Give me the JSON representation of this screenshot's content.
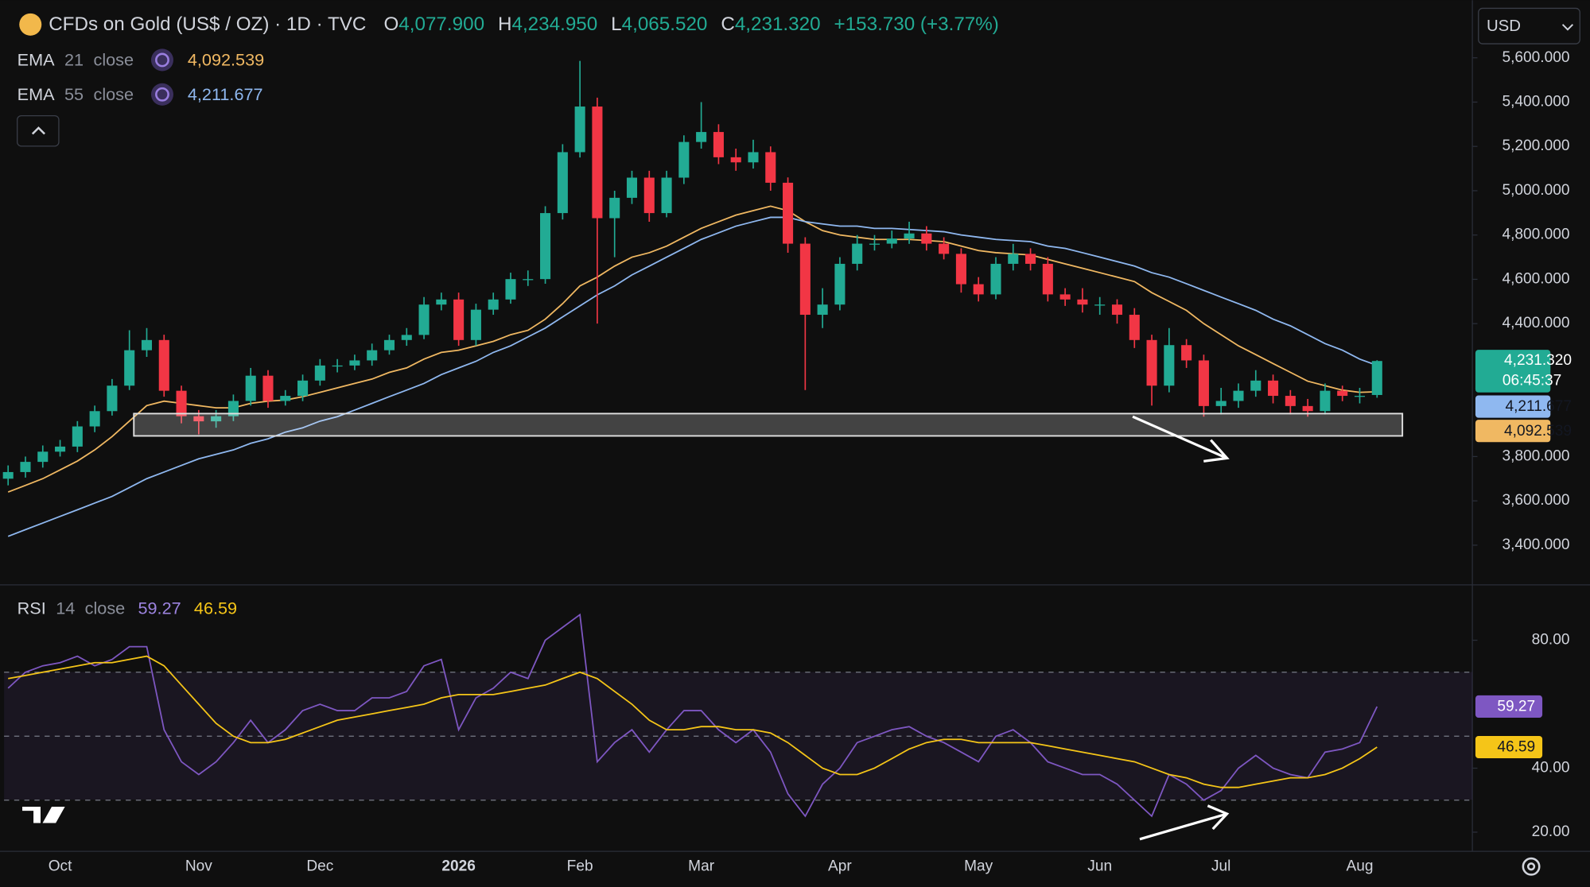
{
  "chart_data": [
    {
      "type": "candlestick",
      "title": "CFDs on Gold (US$ / OZ) · 1D · TVC",
      "header": {
        "o_label": "O",
        "open": "4,077.900",
        "h_label": "H",
        "high": "4,234.950",
        "l_label": "L",
        "low": "4,065.520",
        "c_label": "C",
        "close": "4,231.320",
        "change": "+153.730 (+3.77%)"
      },
      "currency": "USD",
      "countdown": "06:45:37",
      "categories": [
        null,
        null,
        null,
        "Oct",
        null,
        null,
        null,
        null,
        null,
        null,
        null,
        "Nov",
        null,
        null,
        null,
        null,
        null,
        null,
        "Dec",
        null,
        null,
        null,
        null,
        null,
        null,
        null,
        "2026",
        null,
        null,
        null,
        null,
        null,
        null,
        "Feb",
        null,
        null,
        null,
        null,
        null,
        null,
        "Mar",
        null,
        null,
        null,
        null,
        null,
        null,
        null,
        "Apr",
        null,
        null,
        null,
        null,
        null,
        null,
        null,
        "May",
        null,
        null,
        null,
        null,
        null,
        null,
        "Jun",
        null,
        null,
        null,
        null,
        null,
        null,
        "Jul",
        null,
        null,
        null,
        null,
        null,
        null,
        null,
        "Aug",
        null
      ],
      "open": [
        3700,
        3730,
        3776,
        3822,
        3845,
        3936,
        4005,
        4120,
        4280,
        4326,
        4097,
        3982,
        3959,
        3982,
        4051,
        4165,
        4051,
        4074,
        4143,
        4211,
        4211,
        4234,
        4280,
        4326,
        4349,
        4486,
        4509,
        4326,
        4463,
        4509,
        4601,
        4601,
        4899,
        5174,
        5380,
        4876,
        4968,
        5059,
        4899,
        5059,
        5220,
        5265,
        5151,
        5128,
        5174,
        5036,
        4761,
        4440,
        4486,
        4670,
        4761,
        4761,
        4784,
        4807,
        4761,
        4715,
        4578,
        4532,
        4670,
        4715,
        4670,
        4532,
        4509,
        4486,
        4486,
        4440,
        4326,
        4120,
        4303,
        4234,
        4028,
        4051,
        4097,
        4143,
        4074,
        4028,
        4005,
        4097,
        4074,
        4077.9
      ],
      "high": [
        3760,
        3800,
        3850,
        3875,
        3960,
        4030,
        4150,
        4370,
        4380,
        4350,
        4120,
        4010,
        4010,
        4080,
        4200,
        4190,
        4100,
        4170,
        4240,
        4240,
        4260,
        4310,
        4350,
        4380,
        4520,
        4540,
        4540,
        4490,
        4540,
        4630,
        4640,
        4930,
        5210,
        5586,
        5420,
        5000,
        5090,
        5090,
        5090,
        5250,
        5400,
        5300,
        5190,
        5230,
        5200,
        5060,
        4790,
        4560,
        4700,
        4800,
        4800,
        4820,
        4860,
        4840,
        4790,
        4740,
        4610,
        4700,
        4760,
        4740,
        4700,
        4560,
        4560,
        4520,
        4510,
        4470,
        4350,
        4380,
        4330,
        4260,
        4110,
        4130,
        4190,
        4170,
        4100,
        4060,
        4130,
        4120,
        4110,
        4234.95
      ],
      "low": [
        3670,
        3705,
        3750,
        3800,
        3820,
        3910,
        3985,
        4100,
        4250,
        4070,
        3950,
        3900,
        3930,
        3960,
        4030,
        4020,
        4030,
        4050,
        4120,
        4180,
        4190,
        4210,
        4260,
        4300,
        4330,
        4460,
        4300,
        4300,
        4440,
        4490,
        4570,
        4580,
        4870,
        5150,
        4400,
        4700,
        4940,
        4860,
        4880,
        5030,
        5190,
        5120,
        5090,
        5100,
        5000,
        4720,
        4100,
        4380,
        4460,
        4640,
        4730,
        4740,
        4760,
        4730,
        4690,
        4540,
        4500,
        4510,
        4640,
        4640,
        4500,
        4480,
        4450,
        4440,
        4400,
        4290,
        4030,
        4090,
        4200,
        3980,
        3990,
        4020,
        4070,
        4040,
        3990,
        3980,
        3990,
        4050,
        4040,
        4065.52
      ],
      "close": [
        3730,
        3776,
        3822,
        3845,
        3936,
        4005,
        4120,
        4280,
        4326,
        4097,
        3982,
        3959,
        3982,
        4051,
        4165,
        4051,
        4074,
        4143,
        4211,
        4211,
        4234,
        4280,
        4326,
        4349,
        4486,
        4509,
        4326,
        4463,
        4509,
        4601,
        4601,
        4899,
        5174,
        5380,
        4876,
        4968,
        5059,
        4899,
        5059,
        5220,
        5265,
        5151,
        5128,
        5174,
        5036,
        4761,
        4440,
        4486,
        4670,
        4761,
        4761,
        4784,
        4807,
        4761,
        4715,
        4578,
        4532,
        4670,
        4715,
        4670,
        4532,
        4509,
        4486,
        4486,
        4440,
        4326,
        4120,
        4303,
        4234,
        4028,
        4051,
        4097,
        4143,
        4074,
        4028,
        4005,
        4097,
        4074,
        4074,
        4231.32
      ],
      "up_color": "#22ab94",
      "down_color": "#f23645",
      "overlays": [
        {
          "name": "EMA",
          "length": "21",
          "source": "close",
          "color": "#f0b862",
          "last_label": "4,092.539",
          "values": [
            3640,
            3670,
            3700,
            3740,
            3780,
            3830,
            3890,
            3960,
            4030,
            4050,
            4040,
            4030,
            4020,
            4020,
            4040,
            4050,
            4055,
            4070,
            4090,
            4110,
            4130,
            4150,
            4180,
            4200,
            4240,
            4270,
            4280,
            4300,
            4320,
            4350,
            4370,
            4420,
            4490,
            4570,
            4610,
            4660,
            4700,
            4720,
            4750,
            4790,
            4830,
            4860,
            4890,
            4910,
            4930,
            4910,
            4860,
            4820,
            4800,
            4790,
            4780,
            4780,
            4780,
            4775,
            4770,
            4750,
            4730,
            4720,
            4715,
            4710,
            4690,
            4670,
            4650,
            4630,
            4610,
            4590,
            4540,
            4500,
            4460,
            4400,
            4350,
            4300,
            4260,
            4220,
            4180,
            4140,
            4120,
            4100,
            4090,
            4092.539
          ]
        },
        {
          "name": "EMA",
          "length": "55",
          "source": "close",
          "color": "#8fb8f0",
          "last_label": "4,211.677",
          "values": [
            3440,
            3470,
            3500,
            3530,
            3560,
            3590,
            3620,
            3660,
            3700,
            3730,
            3760,
            3790,
            3810,
            3830,
            3860,
            3880,
            3910,
            3930,
            3960,
            3980,
            4010,
            4040,
            4070,
            4100,
            4130,
            4170,
            4200,
            4230,
            4270,
            4300,
            4340,
            4380,
            4430,
            4480,
            4530,
            4570,
            4620,
            4660,
            4700,
            4740,
            4780,
            4810,
            4840,
            4860,
            4880,
            4880,
            4860,
            4850,
            4840,
            4840,
            4830,
            4830,
            4825,
            4820,
            4815,
            4800,
            4790,
            4780,
            4775,
            4770,
            4750,
            4740,
            4720,
            4700,
            4680,
            4660,
            4630,
            4610,
            4580,
            4550,
            4520,
            4490,
            4460,
            4420,
            4390,
            4350,
            4310,
            4280,
            4240,
            4211.677
          ]
        }
      ],
      "ylim": [
        3230,
        5860
      ],
      "yticks": [
        {
          "value": 5600,
          "label": "5,600.000"
        },
        {
          "value": 5400,
          "label": "5,400.000"
        },
        {
          "value": 5200,
          "label": "5,200.000"
        },
        {
          "value": 5000,
          "label": "5,000.000"
        },
        {
          "value": 4800,
          "label": "4,800.000"
        },
        {
          "value": 4600,
          "label": "4,600.000"
        },
        {
          "value": 4400,
          "label": "4,400.000"
        },
        {
          "value": 3800,
          "label": "3,800.000"
        },
        {
          "value": 3600,
          "label": "3,600.000"
        },
        {
          "value": 3400,
          "label": "3,400.000"
        }
      ]
    },
    {
      "type": "line",
      "name": "RSI",
      "length": "14",
      "source": "close",
      "series": [
        {
          "color": "#7e57c2",
          "last_label": "59.27",
          "values": [
            65,
            70,
            72,
            73,
            75,
            72,
            74,
            78,
            78,
            52,
            42,
            38,
            42,
            48,
            55,
            48,
            52,
            58,
            60,
            58,
            58,
            62,
            62,
            64,
            72,
            74,
            52,
            62,
            65,
            70,
            68,
            80,
            84,
            88,
            42,
            48,
            52,
            45,
            52,
            58,
            58,
            52,
            48,
            52,
            45,
            32,
            25,
            35,
            40,
            48,
            50,
            52,
            53,
            50,
            48,
            45,
            42,
            50,
            52,
            48,
            42,
            40,
            38,
            38,
            35,
            30,
            25,
            38,
            35,
            30,
            33,
            40,
            44,
            40,
            38,
            37,
            45,
            46,
            48,
            59.27
          ]
        },
        {
          "color": "#f5c518",
          "last_label": "46.59",
          "values": [
            68,
            69,
            70,
            71,
            72,
            73,
            73,
            74,
            75,
            72,
            66,
            60,
            54,
            50,
            48,
            48,
            49,
            51,
            53,
            55,
            56,
            57,
            58,
            59,
            60,
            62,
            63,
            63,
            63,
            64,
            65,
            66,
            68,
            70,
            68,
            64,
            60,
            55,
            52,
            52,
            53,
            53,
            52,
            52,
            51,
            48,
            44,
            40,
            38,
            38,
            40,
            43,
            46,
            48,
            49,
            49,
            48,
            48,
            48,
            48,
            47,
            46,
            45,
            44,
            43,
            42,
            40,
            38,
            37,
            35,
            34,
            34,
            35,
            36,
            37,
            37,
            38,
            40,
            43,
            46.59
          ]
        }
      ],
      "levels": [
        70,
        50,
        30
      ],
      "ylim": [
        14,
        97
      ],
      "yticks": [
        {
          "value": 80,
          "label": "80.00"
        },
        {
          "value": 40,
          "label": "40.00"
        },
        {
          "value": 20,
          "label": "20.00"
        }
      ]
    }
  ]
}
